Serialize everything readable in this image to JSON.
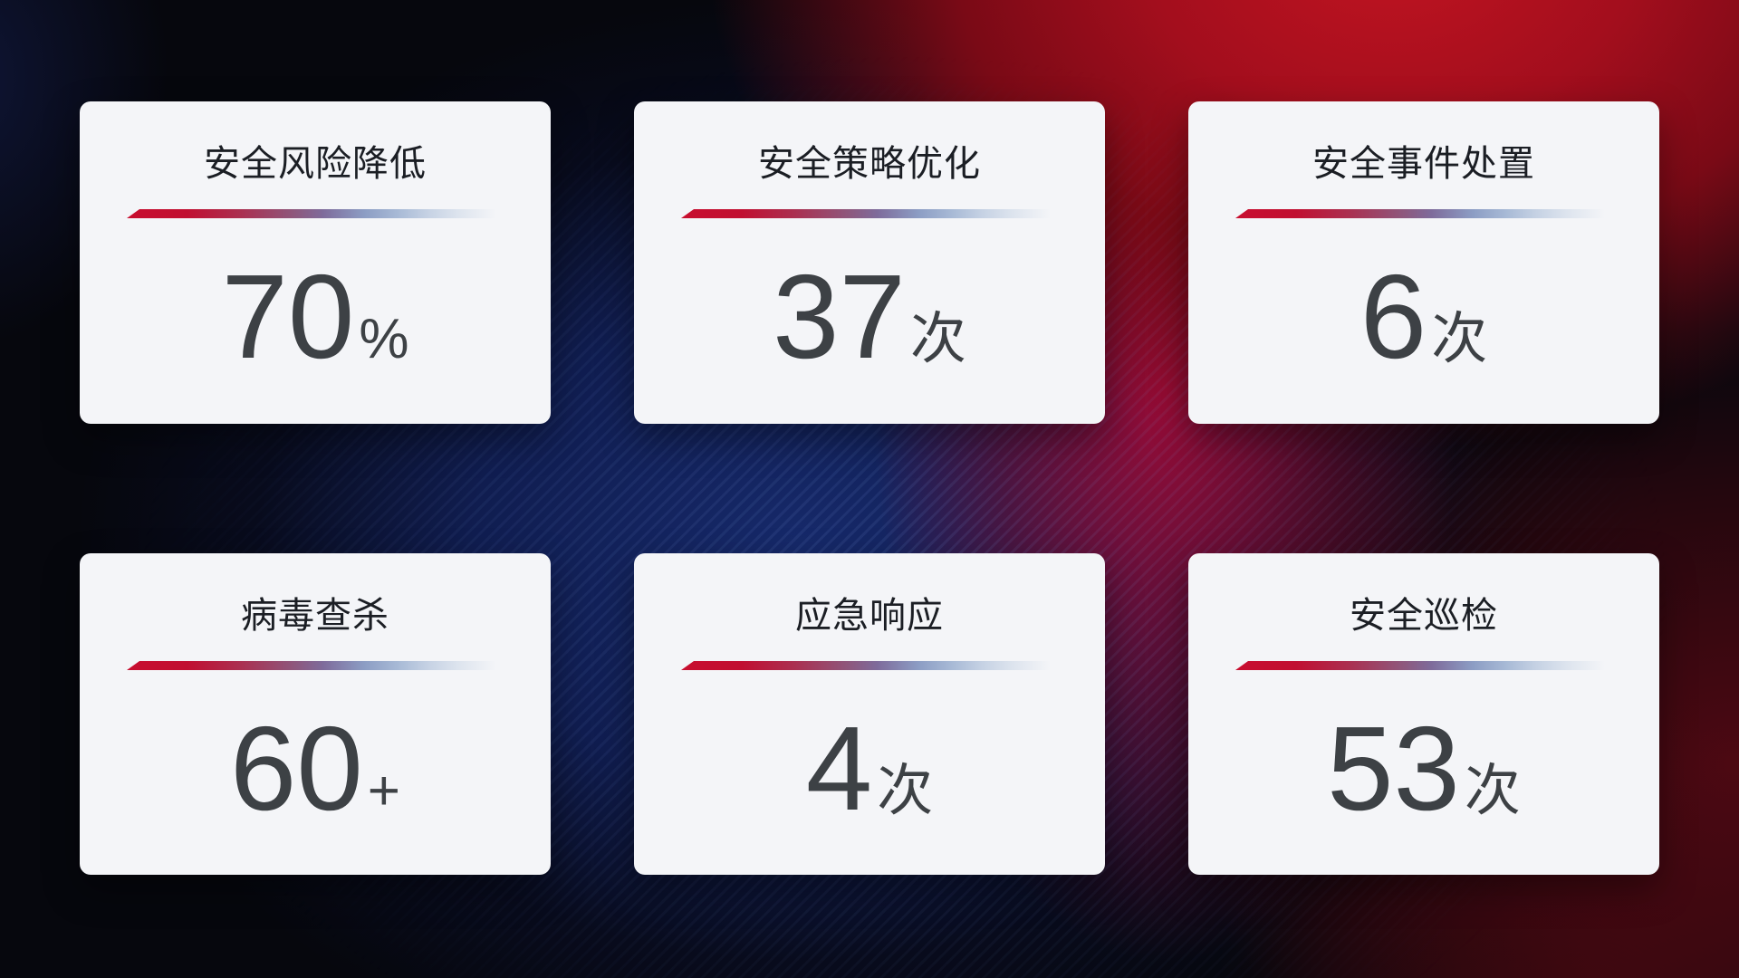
{
  "colors": {
    "accent_red": "#c80e2f",
    "card_background": "#f4f5f8",
    "title_color": "#1b1e24",
    "value_color": "#3d4145",
    "background_navy": "#16296a",
    "background_red": "#a30e1d"
  },
  "cards": [
    {
      "title": "安全风险降低",
      "value": "70",
      "unit": "%"
    },
    {
      "title": "安全策略优化",
      "value": "37",
      "unit": "次"
    },
    {
      "title": "安全事件处置",
      "value": "6",
      "unit": "次"
    },
    {
      "title": "病毒查杀",
      "value": "60",
      "unit": "+"
    },
    {
      "title": "应急响应",
      "value": "4",
      "unit": "次"
    },
    {
      "title": "安全巡检",
      "value": "53",
      "unit": "次"
    }
  ]
}
